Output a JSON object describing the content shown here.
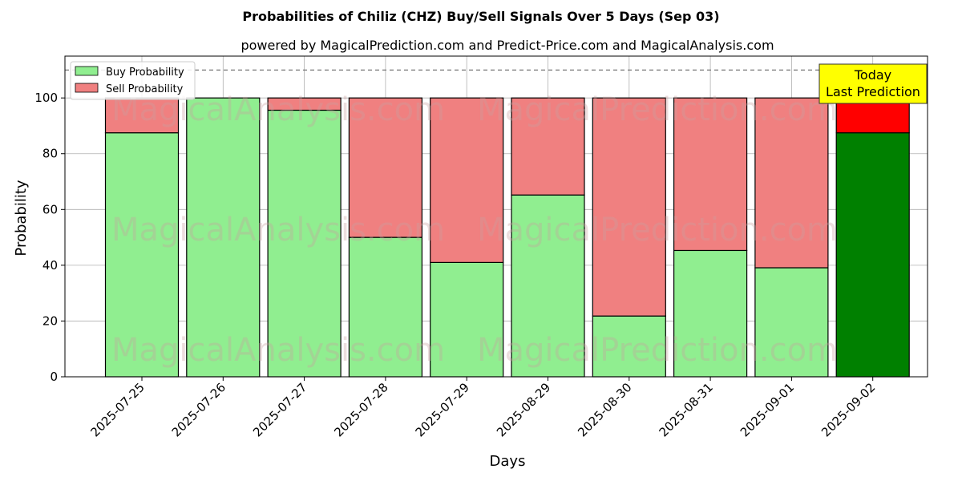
{
  "chart_data": {
    "type": "bar",
    "stacked": true,
    "title": "Probabilities of Chiliz (CHZ) Buy/Sell Signals Over 5 Days (Sep 03)",
    "subtitle": "powered by MagicalPrediction.com and Predict-Price.com and MagicalAnalysis.com",
    "xlabel": "Days",
    "ylabel": "Probability",
    "ylim": [
      0,
      115
    ],
    "yticks": [
      0,
      20,
      40,
      60,
      80,
      100
    ],
    "grid": true,
    "legend_position": "top-left",
    "reference_line": 110,
    "categories": [
      "2025-07-25",
      "2025-07-26",
      "2025-07-27",
      "2025-07-28",
      "2025-07-29",
      "2025-08-29",
      "2025-08-30",
      "2025-08-31",
      "2025-09-01",
      "2025-09-02"
    ],
    "series": [
      {
        "name": "Buy Probability",
        "color": "#90ee90",
        "highlight_color": "#008000",
        "values": [
          87.5,
          100,
          95.6,
          50,
          41,
          65.2,
          21.8,
          45.3,
          39.1,
          87.5
        ]
      },
      {
        "name": "Sell Probability",
        "color": "#f08080",
        "highlight_color": "#ff0000",
        "values": [
          12.5,
          0,
          4.4,
          50,
          59,
          34.8,
          78.2,
          54.7,
          60.9,
          12.5
        ]
      }
    ],
    "highlight_index": 9,
    "annotation": {
      "lines": [
        "Today",
        "Last Prediction"
      ],
      "color": "#ffff00"
    },
    "watermarks": [
      "MagicalAnalysis.com",
      "MagicalPrediction.com"
    ]
  }
}
